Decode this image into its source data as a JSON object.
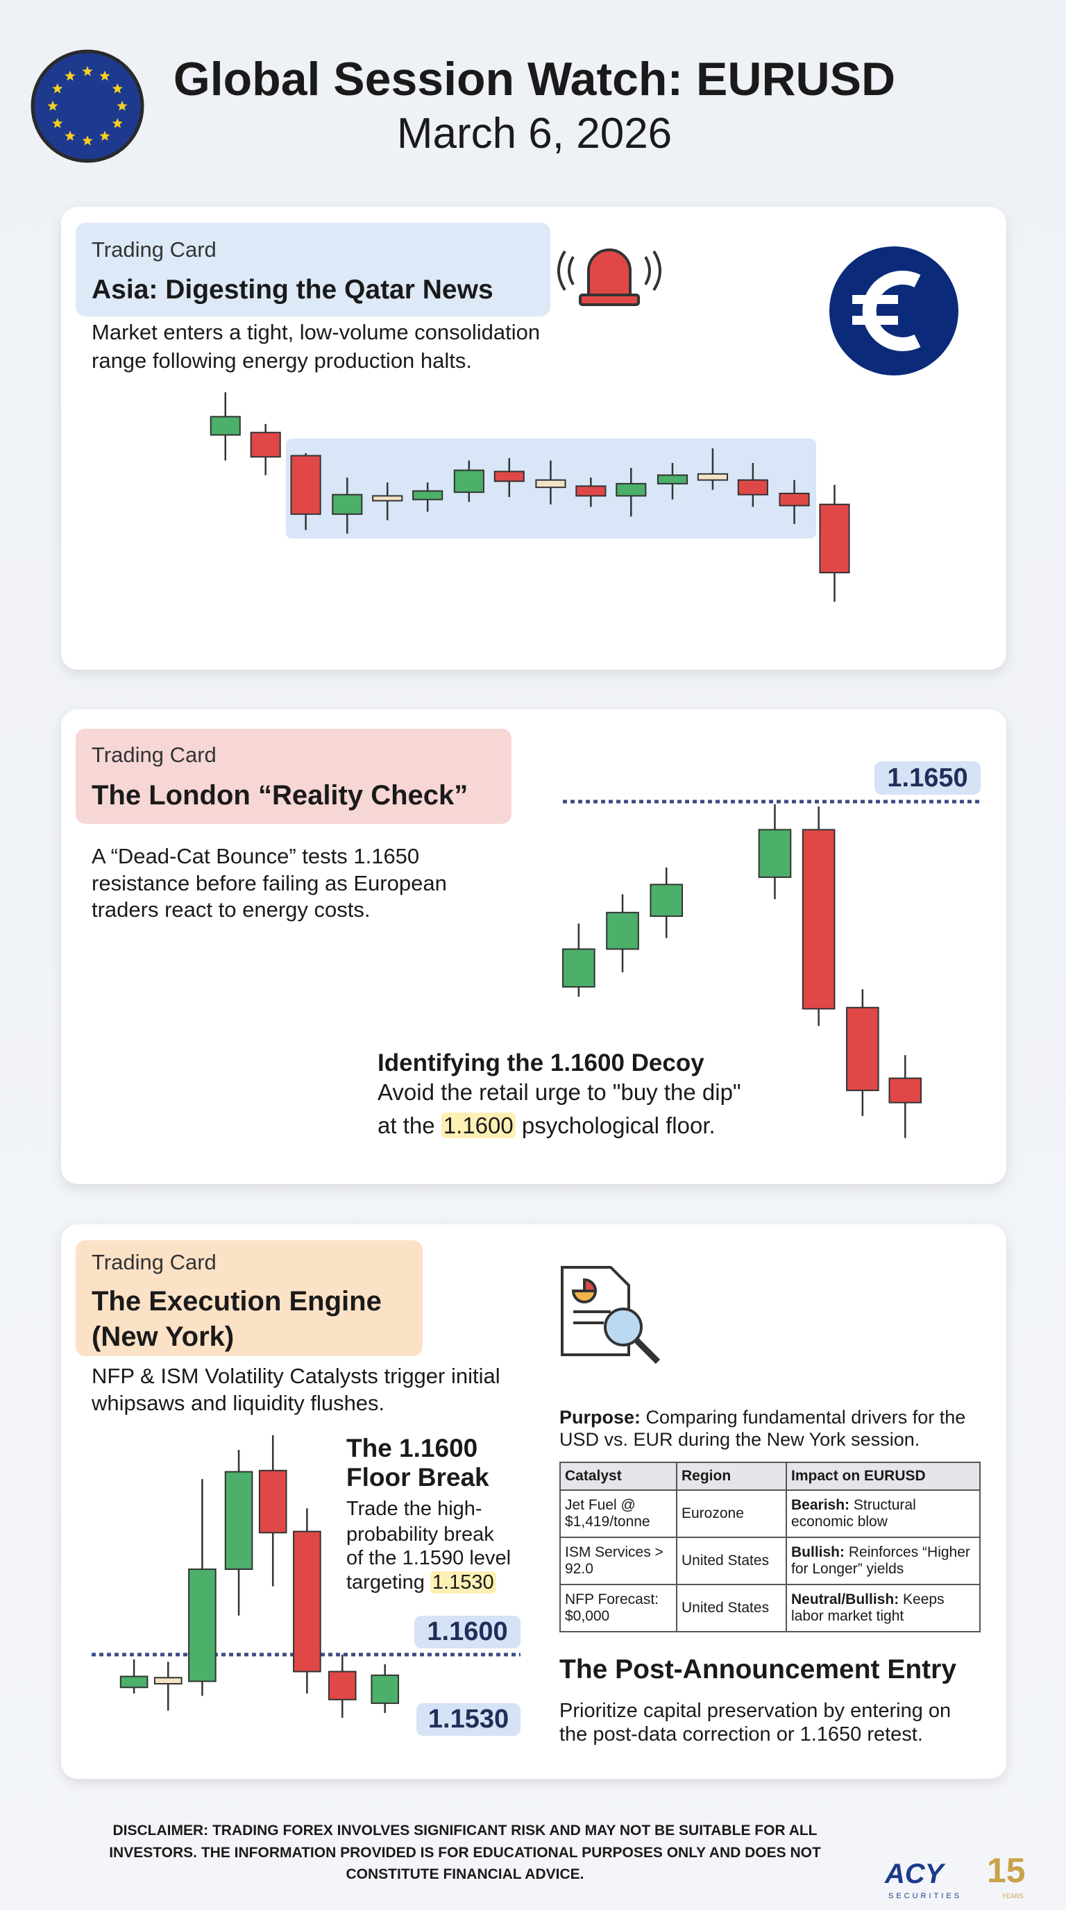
{
  "header": {
    "title": "Global Session Watch: EURUSD",
    "date": "March 6, 2026"
  },
  "asia_card": {
    "label": "Trading Card",
    "heading": "Asia: Digesting the Qatar News",
    "description": [
      "Market enters a tight, low-volume consolidation",
      "range following energy production halts."
    ]
  },
  "london_card": {
    "label": "Trading Card",
    "heading": "The London “Reality Check”",
    "description": [
      "A “Dead-Cat Bounce” tests 1.1650",
      "resistance before failing as European",
      "traders react to energy costs."
    ],
    "resistance_label": "1.1650",
    "callout": {
      "title": "Identifying the 1.1600 Decoy",
      "line1": "Avoid the retail urge to \"buy the dip\"",
      "line2_before": "at the",
      "highlight": "1.1600",
      "line2_after": "psychological floor."
    }
  },
  "new_york_card": {
    "label": "Trading Card",
    "heading": [
      "The Execution Engine",
      "(New York)"
    ],
    "description": [
      "NFP & ISM Volatility Catalysts trigger initial",
      "whipsaws and liquidity flushes."
    ],
    "floor_break": {
      "title": [
        "The 1.1600",
        "Floor Break"
      ],
      "lines": [
        "Trade the high-",
        "probability break",
        "of the 1.1590 level",
        "targeting"
      ],
      "highlight": "1.1530"
    },
    "level_labels": [
      "1.1600",
      "1.1530"
    ],
    "purpose": {
      "label": "Purpose:",
      "lines": [
        "Comparing fundamental drivers for the",
        "USD vs. EUR during the New York session."
      ]
    },
    "table": {
      "headers": [
        "Catalyst",
        "Region",
        "Impact on EURUSD"
      ],
      "rows": [
        [
          "Jet Fuel @ $1,419/tonne",
          "Eurozone",
          {
            "label": "Bearish:",
            "text": "Structural economic blow"
          }
        ],
        [
          "ISM Services > 92.0",
          "United States",
          {
            "label": "Bullish:",
            "text": "Reinforces “Higher for Longer” yields"
          }
        ],
        [
          "NFP Forecast: $0,000",
          "United States",
          {
            "label": "Neutral/Bullish:",
            "text": "Keeps labor market tight"
          }
        ]
      ]
    },
    "entry": {
      "title": "The Post-Announcement Entry",
      "lines": [
        "Prioritize capital preservation by entering on",
        "the post-data correction or 1.1650 retest."
      ]
    }
  },
  "disclaimer": [
    "DISCLAIMER: TRADING FOREX INVOLVES SIGNIFICANT RISK AND MAY NOT BE SUITABLE FOR ALL",
    "INVESTORS. THE INFORMATION PROVIDED IS FOR EDUCATIONAL PURPOSES ONLY AND DOES NOT",
    "CONSTITUTE FINANCIAL ADVICE."
  ],
  "logo": {
    "brand": "ACY",
    "sub": "SECURITIES",
    "anniversary": "15",
    "years": "YEARS"
  }
}
